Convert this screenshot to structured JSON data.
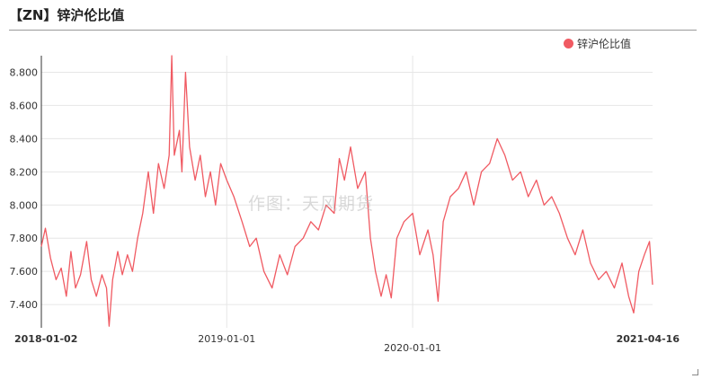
{
  "title": "【ZN】锌沪伦比值",
  "watermark": "作图：天风期货",
  "colors": {
    "series": "#f05a62",
    "grid": "#e6e6e6",
    "axis": "#333333"
  },
  "chart_data": {
    "type": "line",
    "title": "【ZN】锌沪伦比值",
    "legend": "top-right",
    "grid": true,
    "x_range": [
      "2018-01-02",
      "2021-04-16"
    ],
    "x_ticks": [
      {
        "label": "2018-01-02",
        "date": "2018-01-02",
        "bold": true
      },
      {
        "label": "2019-01-01",
        "date": "2019-01-01",
        "bold": false
      },
      {
        "label": "2020-01-01",
        "date": "2020-01-01",
        "bold": false
      },
      {
        "label": "2021-04-16",
        "date": "2021-04-16",
        "bold": true
      }
    ],
    "ylim": [
      7.26,
      8.9
    ],
    "y_ticks": [
      "7.400",
      "7.600",
      "7.800",
      "8.000",
      "8.200",
      "8.400",
      "8.600",
      "8.800"
    ],
    "series": [
      {
        "name": "锌沪伦比值",
        "points": [
          [
            "2018-01-02",
            7.75
          ],
          [
            "2018-01-10",
            7.86
          ],
          [
            "2018-01-20",
            7.68
          ],
          [
            "2018-01-31",
            7.55
          ],
          [
            "2018-02-10",
            7.62
          ],
          [
            "2018-02-20",
            7.45
          ],
          [
            "2018-03-01",
            7.72
          ],
          [
            "2018-03-10",
            7.5
          ],
          [
            "2018-03-20",
            7.58
          ],
          [
            "2018-04-01",
            7.78
          ],
          [
            "2018-04-10",
            7.55
          ],
          [
            "2018-04-20",
            7.45
          ],
          [
            "2018-05-01",
            7.58
          ],
          [
            "2018-05-10",
            7.5
          ],
          [
            "2018-05-15",
            7.27
          ],
          [
            "2018-05-22",
            7.55
          ],
          [
            "2018-06-01",
            7.72
          ],
          [
            "2018-06-10",
            7.58
          ],
          [
            "2018-06-20",
            7.7
          ],
          [
            "2018-06-30",
            7.6
          ],
          [
            "2018-07-10",
            7.8
          ],
          [
            "2018-07-20",
            7.95
          ],
          [
            "2018-07-31",
            8.2
          ],
          [
            "2018-08-10",
            7.95
          ],
          [
            "2018-08-20",
            8.25
          ],
          [
            "2018-08-31",
            8.1
          ],
          [
            "2018-09-10",
            8.3
          ],
          [
            "2018-09-15",
            8.9
          ],
          [
            "2018-09-20",
            8.3
          ],
          [
            "2018-09-30",
            8.45
          ],
          [
            "2018-10-05",
            8.2
          ],
          [
            "2018-10-12",
            8.8
          ],
          [
            "2018-10-20",
            8.35
          ],
          [
            "2018-10-31",
            8.15
          ],
          [
            "2018-11-10",
            8.3
          ],
          [
            "2018-11-20",
            8.05
          ],
          [
            "2018-11-30",
            8.2
          ],
          [
            "2018-12-10",
            8.0
          ],
          [
            "2018-12-20",
            8.25
          ],
          [
            "2019-01-01",
            8.15
          ],
          [
            "2019-01-15",
            8.05
          ],
          [
            "2019-01-31",
            7.9
          ],
          [
            "2019-02-15",
            7.75
          ],
          [
            "2019-02-28",
            7.8
          ],
          [
            "2019-03-15",
            7.6
          ],
          [
            "2019-03-31",
            7.5
          ],
          [
            "2019-04-15",
            7.7
          ],
          [
            "2019-04-30",
            7.58
          ],
          [
            "2019-05-15",
            7.75
          ],
          [
            "2019-05-31",
            7.8
          ],
          [
            "2019-06-15",
            7.9
          ],
          [
            "2019-06-30",
            7.85
          ],
          [
            "2019-07-15",
            8.0
          ],
          [
            "2019-07-31",
            7.95
          ],
          [
            "2019-08-10",
            8.28
          ],
          [
            "2019-08-20",
            8.15
          ],
          [
            "2019-09-01",
            8.35
          ],
          [
            "2019-09-15",
            8.1
          ],
          [
            "2019-09-30",
            8.2
          ],
          [
            "2019-10-10",
            7.8
          ],
          [
            "2019-10-20",
            7.6
          ],
          [
            "2019-10-31",
            7.45
          ],
          [
            "2019-11-10",
            7.58
          ],
          [
            "2019-11-20",
            7.44
          ],
          [
            "2019-12-01",
            7.8
          ],
          [
            "2019-12-15",
            7.9
          ],
          [
            "2020-01-01",
            7.95
          ],
          [
            "2020-01-15",
            7.7
          ],
          [
            "2020-01-31",
            7.85
          ],
          [
            "2020-02-10",
            7.7
          ],
          [
            "2020-02-20",
            7.42
          ],
          [
            "2020-03-01",
            7.9
          ],
          [
            "2020-03-15",
            8.05
          ],
          [
            "2020-03-31",
            8.1
          ],
          [
            "2020-04-15",
            8.2
          ],
          [
            "2020-04-30",
            8.0
          ],
          [
            "2020-05-15",
            8.2
          ],
          [
            "2020-05-31",
            8.25
          ],
          [
            "2020-06-15",
            8.4
          ],
          [
            "2020-06-30",
            8.3
          ],
          [
            "2020-07-15",
            8.15
          ],
          [
            "2020-07-31",
            8.2
          ],
          [
            "2020-08-15",
            8.05
          ],
          [
            "2020-08-31",
            8.15
          ],
          [
            "2020-09-15",
            8.0
          ],
          [
            "2020-09-30",
            8.05
          ],
          [
            "2020-10-15",
            7.95
          ],
          [
            "2020-10-31",
            7.8
          ],
          [
            "2020-11-15",
            7.7
          ],
          [
            "2020-11-30",
            7.85
          ],
          [
            "2020-12-15",
            7.65
          ],
          [
            "2020-12-31",
            7.55
          ],
          [
            "2021-01-15",
            7.6
          ],
          [
            "2021-01-31",
            7.5
          ],
          [
            "2021-02-15",
            7.65
          ],
          [
            "2021-02-28",
            7.45
          ],
          [
            "2021-03-10",
            7.35
          ],
          [
            "2021-03-20",
            7.6
          ],
          [
            "2021-03-31",
            7.7
          ],
          [
            "2021-04-10",
            7.78
          ],
          [
            "2021-04-16",
            7.52
          ]
        ]
      }
    ]
  }
}
